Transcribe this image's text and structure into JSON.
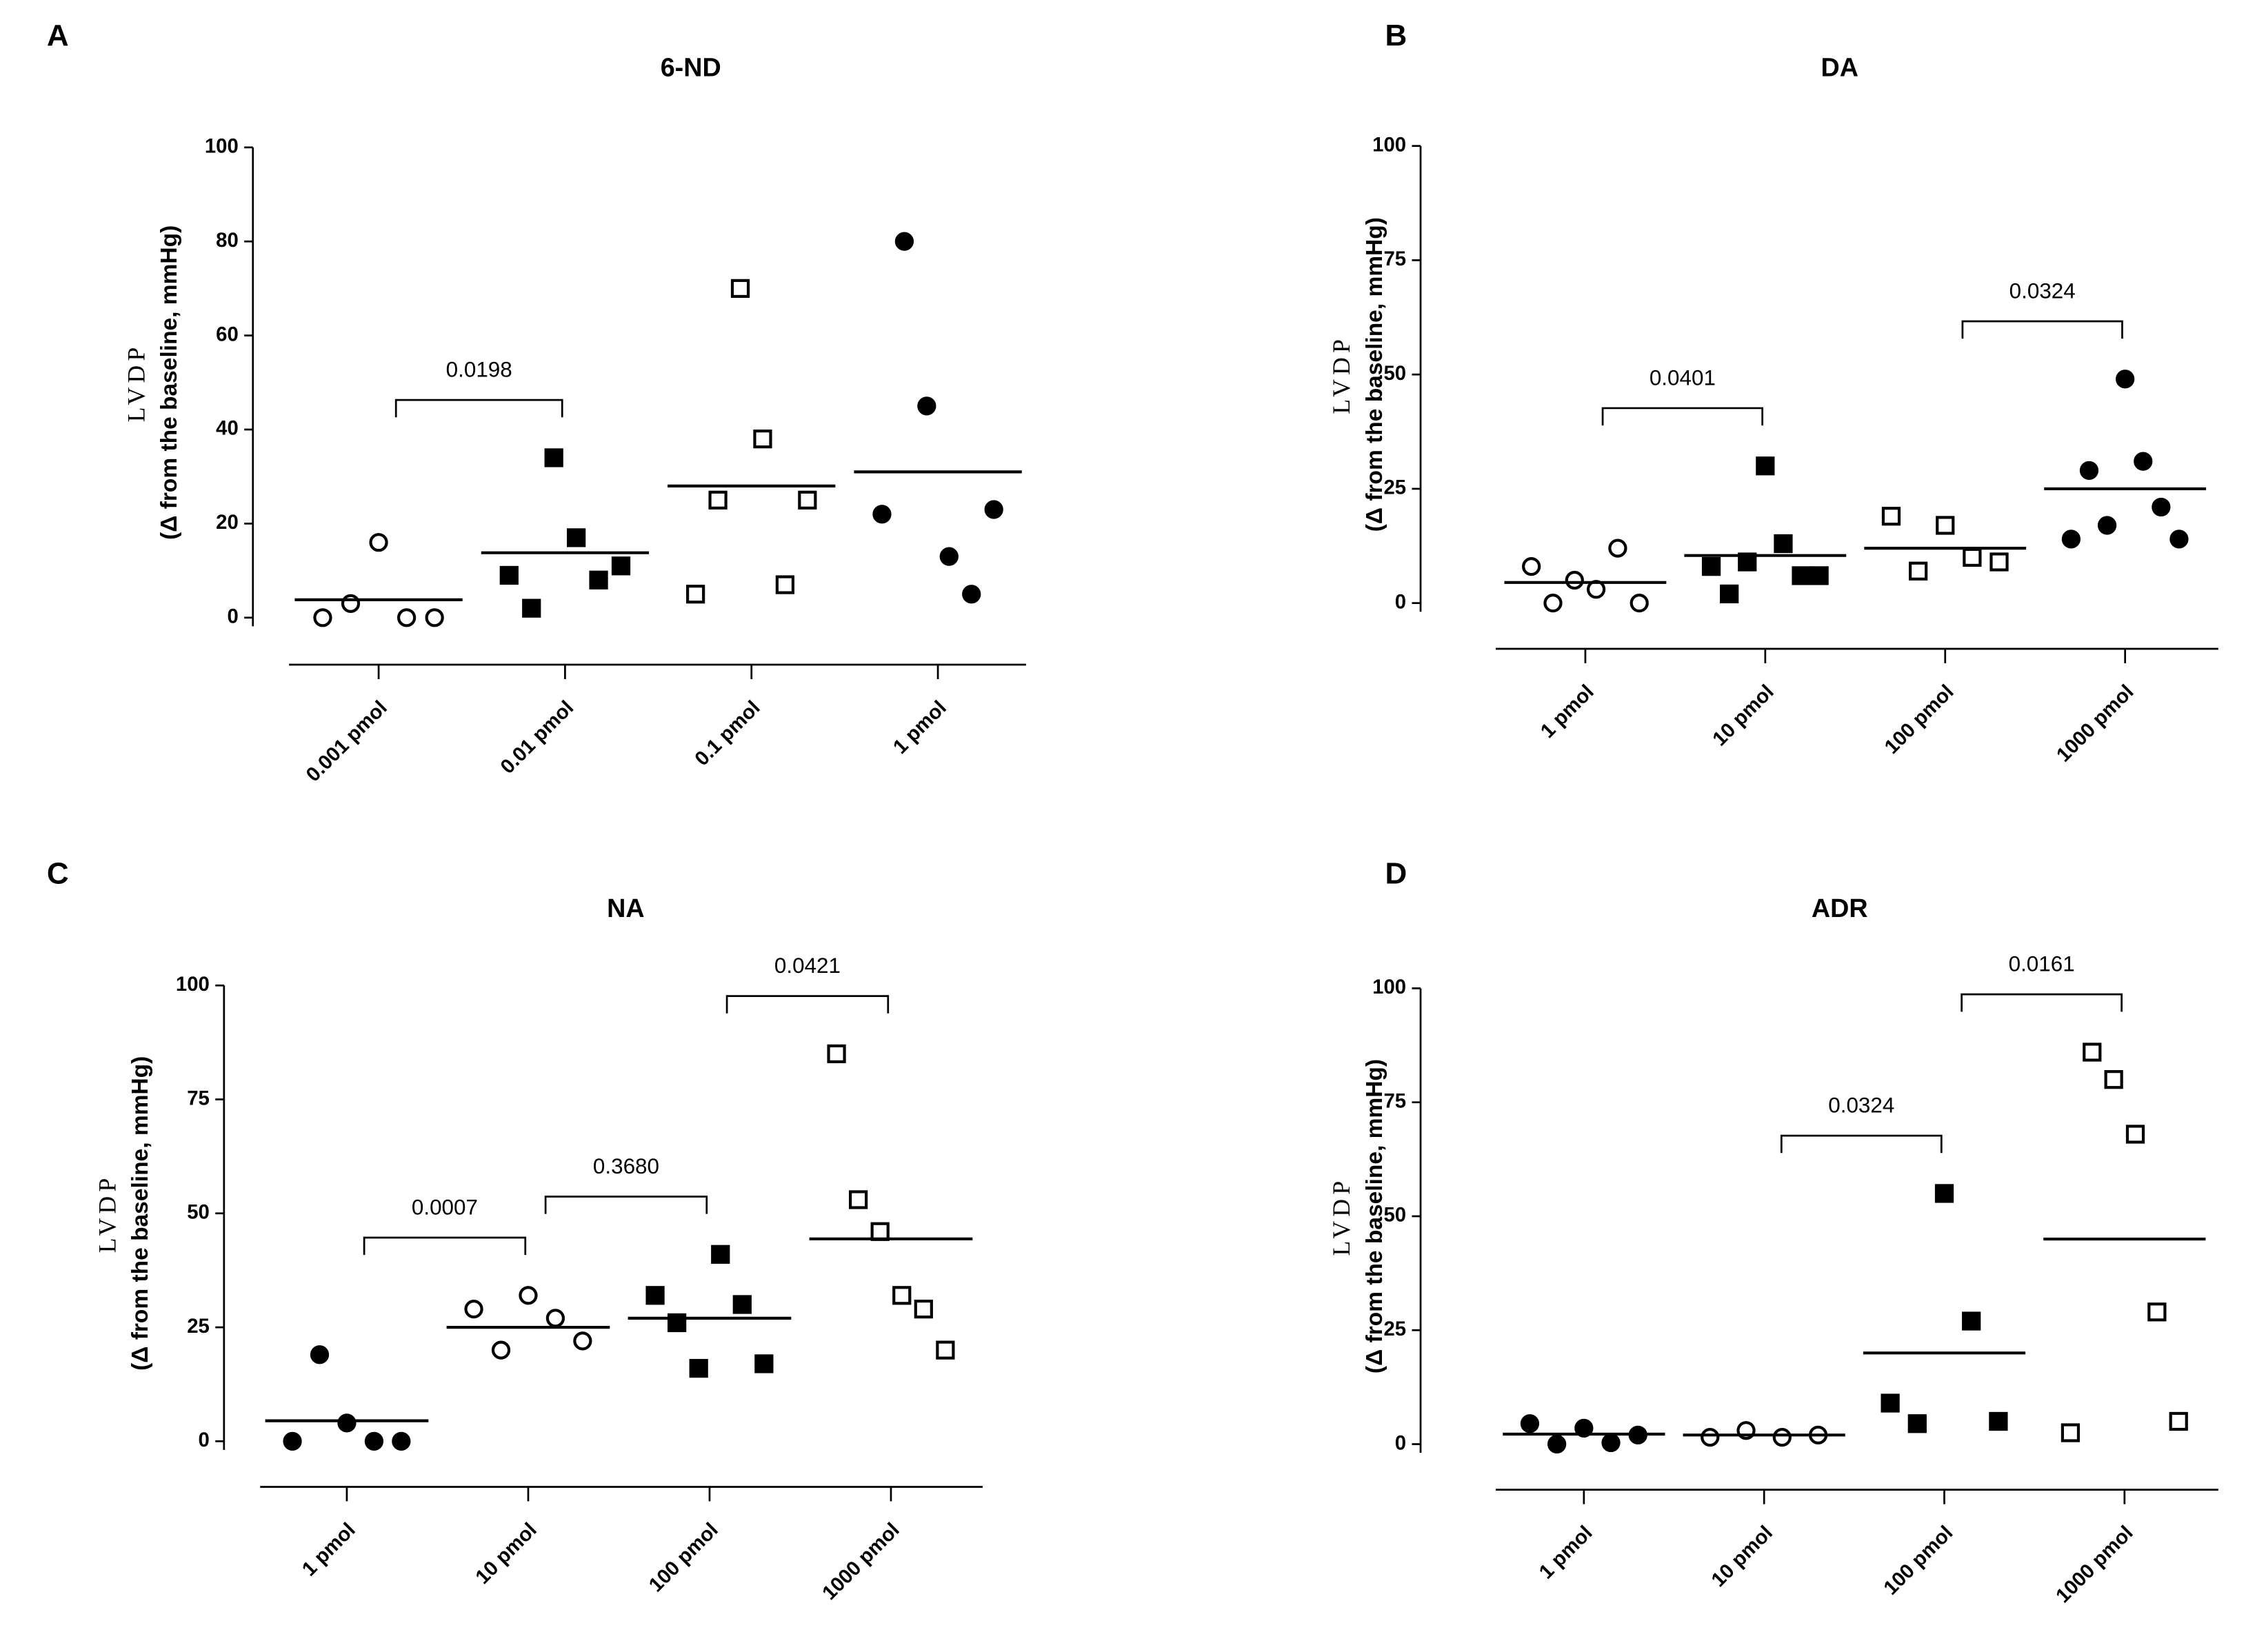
{
  "chart_data": [
    {
      "type": "dot",
      "panel": "A",
      "title": "6-ND",
      "ylabel": [
        "LVDP",
        "(Δ from the baseline, mmHg)"
      ],
      "ylim": [
        -10,
        100
      ],
      "yticks": [
        0,
        20,
        40,
        60,
        80,
        100
      ],
      "groups": [
        {
          "name": "0.001 pmol",
          "marker": "circle-open",
          "values": [
            0,
            3,
            16,
            0,
            0
          ],
          "mean": 3.8
        },
        {
          "name": "0.01 pmol",
          "marker": "square-filled",
          "values": [
            9,
            2,
            34,
            17,
            8,
            11
          ],
          "mean": 13.8
        },
        {
          "name": "0.1 pmol",
          "marker": "square-open",
          "values": [
            5,
            25,
            70,
            38,
            7,
            25
          ],
          "mean": 28
        },
        {
          "name": "1 pmol",
          "marker": "circle-filled",
          "values": [
            22,
            80,
            45,
            13,
            5,
            23
          ],
          "mean": 31
        }
      ],
      "brackets": [
        {
          "groups": [
            "0.001 pmol",
            "0.01 pmol"
          ],
          "label": "0.0198"
        }
      ]
    },
    {
      "type": "dot",
      "panel": "B",
      "title": "DA",
      "ylabel": [
        "LVDP",
        "(Δ from the baseline, mmHg)"
      ],
      "ylim": [
        -10,
        100
      ],
      "yticks": [
        0,
        25,
        50,
        75,
        100
      ],
      "groups": [
        {
          "name": "1 pmol",
          "marker": "circle-open",
          "values": [
            8,
            0,
            5,
            3,
            12,
            0
          ],
          "mean": 4.5
        },
        {
          "name": "10 pmol",
          "marker": "square-filled",
          "values": [
            8,
            2,
            9,
            30,
            13,
            6,
            6
          ],
          "mean": 10.4
        },
        {
          "name": "100 pmol",
          "marker": "square-open",
          "values": [
            19,
            7,
            17,
            10,
            9
          ],
          "mean": 12
        },
        {
          "name": "1000 pmol",
          "marker": "circle-filled",
          "values": [
            14,
            29,
            17,
            49,
            31,
            21,
            14
          ],
          "mean": 25
        }
      ],
      "brackets": [
        {
          "groups": [
            "1 pmol",
            "10 pmol"
          ],
          "label": "0.0401"
        },
        {
          "groups": [
            "100 pmol",
            "1000 pmol"
          ],
          "label": "0.0324"
        }
      ]
    },
    {
      "type": "dot",
      "panel": "C",
      "title": "NA",
      "ylabel": [
        "LVDP",
        "(Δ from the baseline, mmHg)"
      ],
      "ylim": [
        -10,
        100
      ],
      "yticks": [
        0,
        25,
        50,
        75,
        100
      ],
      "groups": [
        {
          "name": "1 pmol",
          "marker": "circle-filled",
          "values": [
            0,
            19,
            4,
            0,
            0
          ],
          "mean": 4.5
        },
        {
          "name": "10 pmol",
          "marker": "circle-open",
          "values": [
            29,
            20,
            32,
            27,
            22
          ],
          "mean": 25
        },
        {
          "name": "100 pmol",
          "marker": "square-filled",
          "values": [
            32,
            26,
            16,
            41,
            30,
            17
          ],
          "mean": 27
        },
        {
          "name": "1000 pmol",
          "marker": "square-open",
          "values": [
            85,
            53,
            46,
            32,
            29,
            20
          ],
          "mean": 44.4
        }
      ],
      "brackets": [
        {
          "groups": [
            "1 pmol",
            "10 pmol"
          ],
          "label": "0.0007"
        },
        {
          "groups": [
            "10 pmol",
            "100 pmol"
          ],
          "label": "0.3680"
        },
        {
          "groups": [
            "100 pmol",
            "1000 pmol"
          ],
          "label": "0.0421"
        }
      ]
    },
    {
      "type": "dot",
      "panel": "D",
      "title": "ADR",
      "ylabel": [
        "LVDP",
        "(Δ from the baseline, mmHg)"
      ],
      "ylim": [
        -10,
        100
      ],
      "yticks": [
        0,
        25,
        50,
        75,
        100
      ],
      "groups": [
        {
          "name": "1 pmol",
          "marker": "circle-filled",
          "values": [
            4.5,
            0,
            3.5,
            0.3,
            2
          ],
          "mean": 2.2
        },
        {
          "name": "10 pmol",
          "marker": "circle-open",
          "values": [
            1.5,
            3,
            1.5,
            2
          ],
          "mean": 2
        },
        {
          "name": "100 pmol",
          "marker": "square-filled",
          "values": [
            9,
            4.5,
            55,
            27,
            5
          ],
          "mean": 20
        },
        {
          "name": "1000 pmol",
          "marker": "square-open",
          "values": [
            2.5,
            86,
            80,
            68,
            29,
            5
          ],
          "mean": 45
        }
      ],
      "brackets": [
        {
          "groups": [
            "10 pmol",
            "100 pmol"
          ],
          "label": "0.0324"
        },
        {
          "groups": [
            "100 pmol",
            "1000 pmol"
          ],
          "label": "0.0161"
        }
      ]
    }
  ]
}
